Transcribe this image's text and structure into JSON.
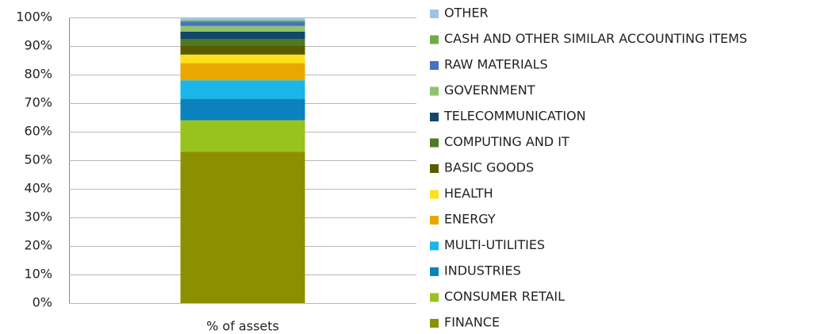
{
  "chart_data": {
    "type": "stacked_bar",
    "categories": [
      "% of assets"
    ],
    "series": [
      {
        "name": "FINANCE",
        "color": "#8c8f00",
        "values": [
          53
        ]
      },
      {
        "name": "CONSUMER RETAIL",
        "color": "#98c21d",
        "values": [
          11
        ]
      },
      {
        "name": "INDUSTRIES",
        "color": "#0a82be",
        "values": [
          7.5
        ]
      },
      {
        "name": "MULTI-UTILITIES",
        "color": "#1ab6ea",
        "values": [
          6.5
        ]
      },
      {
        "name": "ENERGY",
        "color": "#e8a800",
        "values": [
          6
        ]
      },
      {
        "name": "HEALTH",
        "color": "#ffe01b",
        "values": [
          3
        ]
      },
      {
        "name": "BASIC GOODS",
        "color": "#5a5a00",
        "values": [
          3
        ]
      },
      {
        "name": "COMPUTING AND IT",
        "color": "#4c7a22",
        "values": [
          2.5
        ]
      },
      {
        "name": "TELECOMMUNICATION",
        "color": "#12476b",
        "values": [
          2.5
        ]
      },
      {
        "name": "GOVERNMENT",
        "color": "#8fc26a",
        "values": [
          2
        ]
      },
      {
        "name": "RAW MATERIALS",
        "color": "#4472c4",
        "values": [
          1.5
        ]
      },
      {
        "name": "CASH AND OTHER SIMILAR ACCOUNTING ITEMS",
        "color": "#70ad47",
        "values": [
          0.5
        ]
      },
      {
        "name": "OTHER",
        "color": "#9fc3e6",
        "values": [
          1
        ]
      }
    ],
    "ylim": [
      0,
      100
    ],
    "yticks": [
      {
        "value": 0,
        "label": "0%"
      },
      {
        "value": 10,
        "label": "10%"
      },
      {
        "value": 20,
        "label": "20%"
      },
      {
        "value": 30,
        "label": "30%"
      },
      {
        "value": 40,
        "label": "40%"
      },
      {
        "value": 50,
        "label": "50%"
      },
      {
        "value": 60,
        "label": "60%"
      },
      {
        "value": 70,
        "label": "70%"
      },
      {
        "value": 80,
        "label": "80%"
      },
      {
        "value": 90,
        "label": "90%"
      },
      {
        "value": 100,
        "label": "100%"
      }
    ],
    "grid": true,
    "legend": "right"
  }
}
